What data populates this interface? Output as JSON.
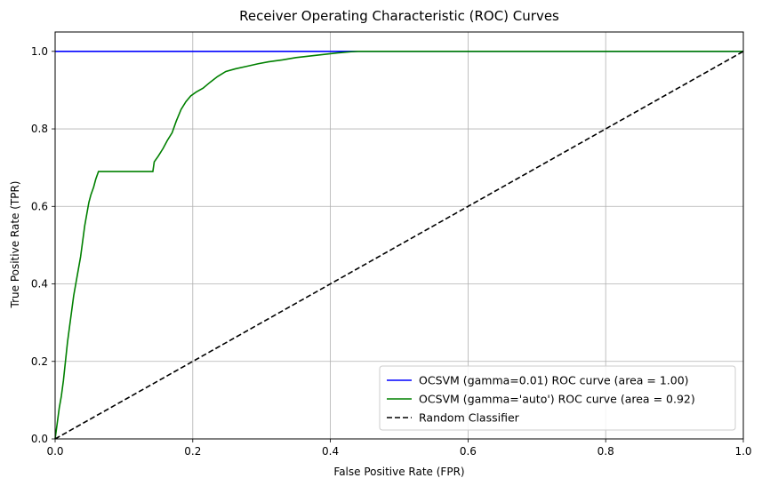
{
  "chart_data": {
    "type": "line",
    "title": "Receiver Operating Characteristic (ROC) Curves",
    "xlabel": "False Positive Rate (FPR)",
    "ylabel": "True Positive Rate (TPR)",
    "xlim": [
      0.0,
      1.0
    ],
    "ylim": [
      0.0,
      1.05
    ],
    "xticks": [
      "0.0",
      "0.2",
      "0.4",
      "0.6",
      "0.8",
      "1.0"
    ],
    "yticks": [
      "0.0",
      "0.2",
      "0.4",
      "0.6",
      "0.8",
      "1.0"
    ],
    "grid": true,
    "legend_position": "lower-right",
    "series": [
      {
        "name": "OCSVM (gamma=0.01) ROC curve (area = 1.00)",
        "color": "#0000ff",
        "style": "solid",
        "points": [
          [
            0.0,
            1.0
          ],
          [
            1.0,
            1.0
          ]
        ]
      },
      {
        "name": "OCSVM (gamma='auto') ROC curve (area = 0.92)",
        "color": "#008000",
        "style": "solid",
        "points": [
          [
            0.0,
            0.0
          ],
          [
            0.003,
            0.04
          ],
          [
            0.006,
            0.08
          ],
          [
            0.009,
            0.11
          ],
          [
            0.012,
            0.15
          ],
          [
            0.015,
            0.2
          ],
          [
            0.018,
            0.25
          ],
          [
            0.021,
            0.29
          ],
          [
            0.024,
            0.33
          ],
          [
            0.027,
            0.37
          ],
          [
            0.03,
            0.4
          ],
          [
            0.033,
            0.43
          ],
          [
            0.037,
            0.47
          ],
          [
            0.04,
            0.51
          ],
          [
            0.043,
            0.55
          ],
          [
            0.046,
            0.58
          ],
          [
            0.049,
            0.61
          ],
          [
            0.052,
            0.63
          ],
          [
            0.056,
            0.65
          ],
          [
            0.059,
            0.67
          ],
          [
            0.063,
            0.69
          ],
          [
            0.065,
            0.69
          ],
          [
            0.142,
            0.69
          ],
          [
            0.144,
            0.715
          ],
          [
            0.15,
            0.73
          ],
          [
            0.157,
            0.75
          ],
          [
            0.163,
            0.77
          ],
          [
            0.17,
            0.79
          ],
          [
            0.176,
            0.82
          ],
          [
            0.183,
            0.85
          ],
          [
            0.19,
            0.87
          ],
          [
            0.197,
            0.885
          ],
          [
            0.205,
            0.895
          ],
          [
            0.215,
            0.905
          ],
          [
            0.225,
            0.92
          ],
          [
            0.236,
            0.935
          ],
          [
            0.248,
            0.948
          ],
          [
            0.262,
            0.955
          ],
          [
            0.28,
            0.962
          ],
          [
            0.295,
            0.968
          ],
          [
            0.31,
            0.973
          ],
          [
            0.33,
            0.978
          ],
          [
            0.35,
            0.984
          ],
          [
            0.37,
            0.988
          ],
          [
            0.39,
            0.992
          ],
          [
            0.41,
            0.996
          ],
          [
            0.43,
            0.999
          ],
          [
            0.44,
            1.0
          ],
          [
            1.0,
            1.0
          ]
        ]
      },
      {
        "name": "Random Classifier",
        "color": "#000000",
        "style": "dashed",
        "points": [
          [
            0.0,
            0.0
          ],
          [
            1.0,
            1.0
          ]
        ]
      }
    ]
  }
}
